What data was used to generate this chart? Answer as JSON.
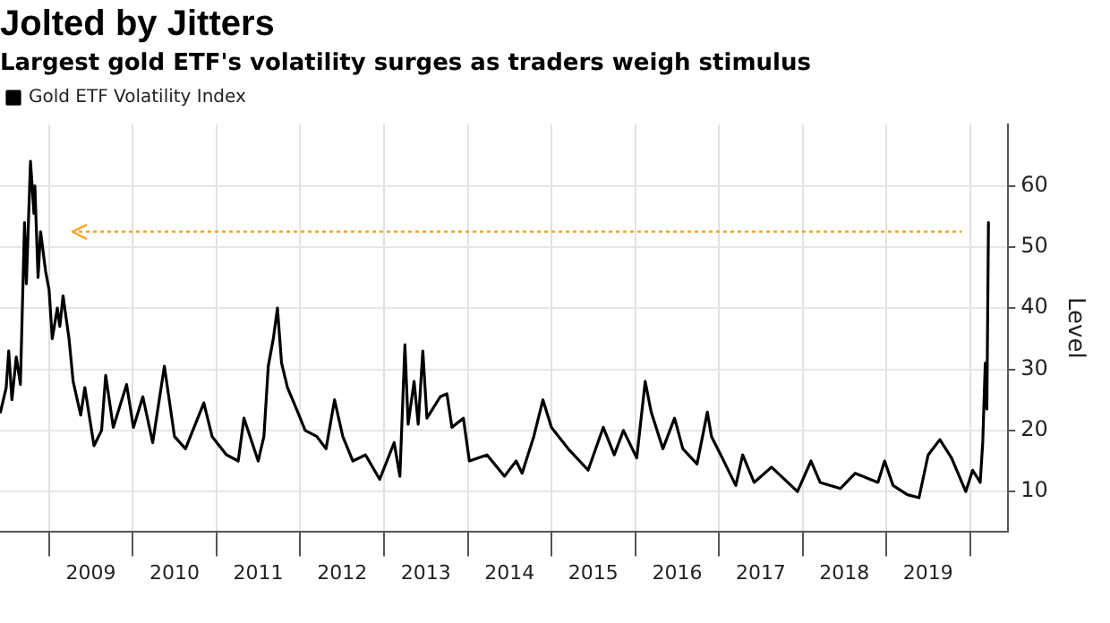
{
  "chart_data": {
    "type": "line",
    "title": "Jolted by Jitters",
    "subtitle": "Largest gold ETF's volatility surges as traders weigh stimulus",
    "ylabel": "Level",
    "legend": "top left",
    "grid": true,
    "marker": "none",
    "line_style": "solid",
    "xlim": [
      "2008-06-01",
      "2020-06-15"
    ],
    "ylim": [
      3.5,
      70
    ],
    "yticks": [
      10,
      20,
      30,
      40,
      50,
      60
    ],
    "xticks": [
      {
        "value": "2009-01-01",
        "label": null
      },
      {
        "value": "2009-07-02",
        "label": "2009"
      },
      {
        "value": "2010-01-01",
        "label": null
      },
      {
        "value": "2010-07-02",
        "label": "2010"
      },
      {
        "value": "2011-01-01",
        "label": null
      },
      {
        "value": "2011-07-02",
        "label": "2011"
      },
      {
        "value": "2012-01-01",
        "label": null
      },
      {
        "value": "2012-07-02",
        "label": "2012"
      },
      {
        "value": "2013-01-01",
        "label": null
      },
      {
        "value": "2013-07-02",
        "label": "2013"
      },
      {
        "value": "2014-01-01",
        "label": null
      },
      {
        "value": "2014-07-02",
        "label": "2014"
      },
      {
        "value": "2015-01-01",
        "label": null
      },
      {
        "value": "2015-07-02",
        "label": "2015"
      },
      {
        "value": "2016-01-01",
        "label": null
      },
      {
        "value": "2016-07-02",
        "label": "2016"
      },
      {
        "value": "2017-01-01",
        "label": null
      },
      {
        "value": "2017-07-02",
        "label": "2017"
      },
      {
        "value": "2018-01-01",
        "label": null
      },
      {
        "value": "2018-07-02",
        "label": "2018"
      },
      {
        "value": "2019-01-01",
        "label": null
      },
      {
        "value": "2019-07-02",
        "label": "2019"
      },
      {
        "value": "2020-01-01",
        "label": null
      }
    ],
    "ref_lines": [
      {
        "axis": "y",
        "value": 52.5,
        "color": "#f5a623",
        "line_style": "dotted"
      }
    ],
    "series": [
      {
        "name": "Gold ETF Volatility Index",
        "color": "#000000",
        "x": [
          "2008-06-03",
          "2008-06-28",
          "2008-07-09",
          "2008-07-23",
          "2008-08-11",
          "2008-08-29",
          "2008-09-16",
          "2008-09-24",
          "2008-10-12",
          "2008-10-27",
          "2008-10-31",
          "2008-11-14",
          "2008-11-25",
          "2008-12-17",
          "2009-01-01",
          "2009-01-15",
          "2009-02-06",
          "2009-02-17",
          "2009-03-03",
          "2009-03-29",
          "2009-04-16",
          "2009-05-19",
          "2009-06-06",
          "2009-07-16",
          "2009-08-18",
          "2009-09-05",
          "2009-10-08",
          "2009-12-05",
          "2010-01-04",
          "2010-02-14",
          "2010-03-29",
          "2010-05-19",
          "2010-07-02",
          "2010-08-19",
          "2010-11-07",
          "2010-12-13",
          "2011-02-14",
          "2011-04-06",
          "2011-05-01",
          "2011-07-02",
          "2011-07-27",
          "2011-08-15",
          "2011-09-06",
          "2011-09-24",
          "2011-10-12",
          "2011-11-07",
          "2011-12-16",
          "2012-01-23",
          "2012-03-14",
          "2012-04-23",
          "2012-05-30",
          "2012-07-05",
          "2012-08-18",
          "2012-10-12",
          "2012-12-13",
          "2013-02-14",
          "2013-03-11",
          "2013-04-02",
          "2013-04-16",
          "2013-05-12",
          "2013-05-30",
          "2013-06-19",
          "2013-07-07",
          "2013-09-03",
          "2013-10-02",
          "2013-10-24",
          "2013-12-13",
          "2014-01-08",
          "2014-03-26",
          "2014-06-10",
          "2014-07-31",
          "2014-08-26",
          "2014-10-16",
          "2014-11-25",
          "2015-01-01",
          "2015-03-15",
          "2015-06-10",
          "2015-08-15",
          "2015-10-02",
          "2015-11-11",
          "2016-01-08",
          "2016-02-14",
          "2016-03-11",
          "2016-05-01",
          "2016-06-21",
          "2016-07-27",
          "2016-09-27",
          "2016-11-11",
          "2016-11-29",
          "2017-01-15",
          "2017-03-15",
          "2017-04-14",
          "2017-06-03",
          "2017-08-18",
          "2017-12-09",
          "2018-02-06",
          "2018-03-18",
          "2018-06-14",
          "2018-08-18",
          "2018-11-25",
          "2018-12-24",
          "2019-01-30",
          "2019-04-02",
          "2019-05-23",
          "2019-07-02",
          "2019-08-22",
          "2019-10-12",
          "2019-12-13",
          "2020-01-12",
          "2020-02-14",
          "2020-02-25",
          "2020-03-07",
          "2020-03-14",
          "2020-03-21"
        ],
        "values": [
          23,
          27,
          33,
          25,
          32,
          27.5,
          54,
          44,
          64,
          55.5,
          60,
          45,
          52.5,
          46,
          43,
          35,
          40,
          37,
          42,
          35,
          28,
          22.5,
          27,
          17.5,
          20,
          29,
          20.5,
          27.5,
          20.5,
          25.5,
          18,
          30.5,
          19,
          17,
          24.5,
          19,
          16,
          15,
          22,
          15,
          19,
          30.5,
          35,
          40,
          31,
          27,
          23.5,
          20,
          19,
          17,
          25,
          19,
          15,
          16,
          12,
          18,
          12.5,
          34,
          21,
          28,
          21,
          33,
          22,
          25.5,
          26,
          20.5,
          22,
          15,
          16,
          12.5,
          15,
          13,
          19,
          25,
          20.5,
          17,
          13.5,
          20.5,
          16,
          20,
          15.5,
          28,
          23,
          17,
          22,
          17,
          14.5,
          23,
          19,
          15.5,
          11,
          16,
          11.5,
          14,
          10,
          15,
          11.5,
          10.5,
          13,
          11.5,
          15,
          11,
          9.5,
          9,
          16,
          18.5,
          15.5,
          10,
          13.5,
          11.5,
          18,
          31,
          23.5,
          54
        ]
      }
    ]
  }
}
